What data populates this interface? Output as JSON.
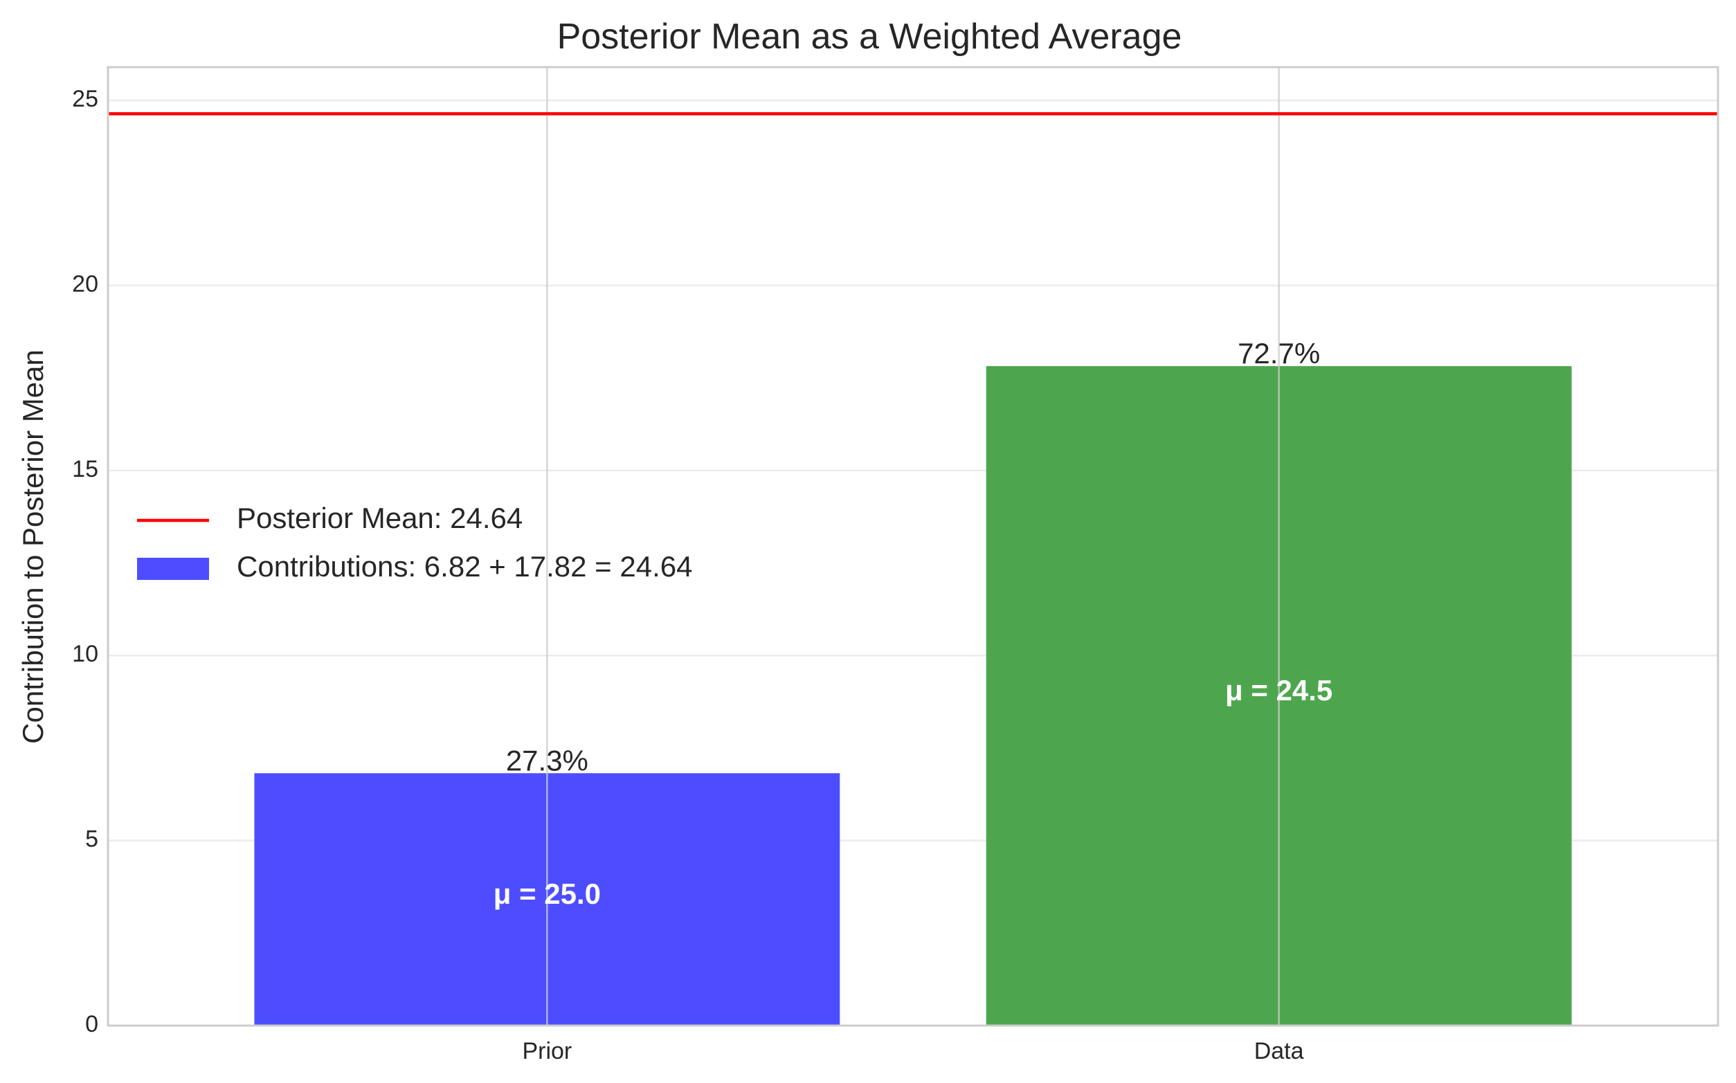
{
  "chart_data": {
    "type": "bar",
    "title": "Posterior Mean as a Weighted Average",
    "xlabel": "",
    "ylabel": "Contribution to Posterior Mean",
    "categories": [
      "Prior",
      "Data"
    ],
    "values": [
      6.82,
      17.82
    ],
    "bar_colors": [
      "#4d4dff",
      "#4da64d"
    ],
    "percent_labels": [
      "27.3%",
      "72.7%"
    ],
    "mu_labels": [
      "μ = 25.0",
      "μ = 24.5"
    ],
    "mu_label_y": [
      3.5,
      9.0
    ],
    "hline": {
      "value": 24.64,
      "color": "#ff0000"
    },
    "ylim": [
      0,
      25.9
    ],
    "yticks": [
      0,
      5,
      10,
      15,
      20,
      25
    ],
    "grid": true,
    "legend": {
      "placement": "center-left",
      "entries": [
        {
          "type": "line",
          "label": "Posterior Mean: 24.64",
          "color": "#ff0000"
        },
        {
          "type": "patch",
          "label": "Contributions: 6.82 + 17.82 = 24.64",
          "color": "#4d4dff"
        }
      ]
    }
  }
}
